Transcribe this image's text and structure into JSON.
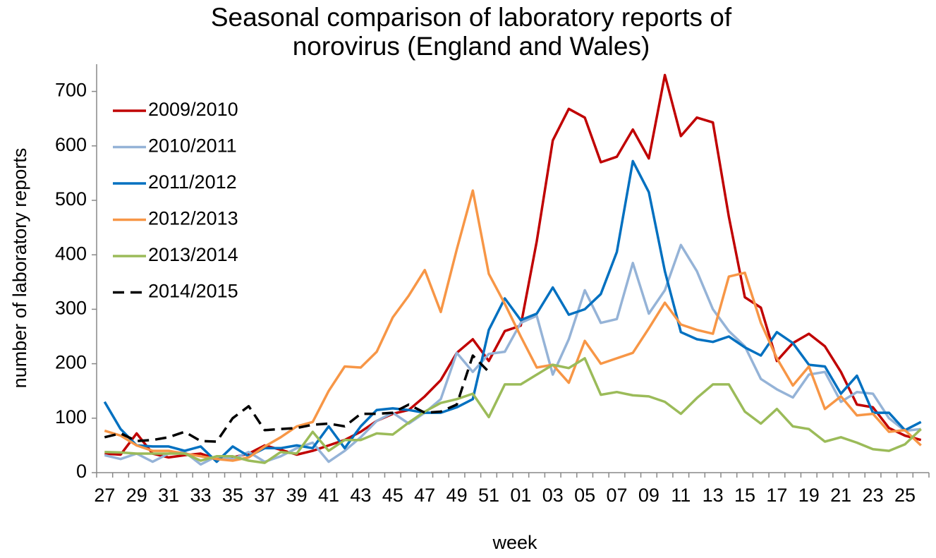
{
  "chart_data": {
    "type": "line",
    "title": "Seasonal comparison of laboratory reports of norovirus (England and Wales)",
    "x_label": "week",
    "y_label": "number of laboratory reports",
    "categories": [
      "27",
      null,
      "29",
      null,
      "31",
      null,
      "33",
      null,
      "35",
      null,
      "37",
      null,
      "39",
      null,
      "41",
      null,
      "43",
      null,
      "45",
      null,
      "47",
      null,
      "49",
      null,
      "51",
      null,
      "01",
      null,
      "03",
      null,
      "05",
      null,
      "07",
      null,
      "09",
      null,
      "11",
      null,
      "13",
      null,
      "15",
      null,
      "17",
      null,
      "19",
      null,
      "21",
      null,
      "23",
      null,
      "25",
      null
    ],
    "ylim": [
      0,
      750
    ],
    "yticks": [
      0,
      100,
      200,
      300,
      400,
      500,
      600,
      700
    ],
    "grid": false,
    "legend": "top-left",
    "series": [
      {
        "name": "2009/2010",
        "color": "#c00000",
        "values": [
          35,
          33,
          72,
          35,
          28,
          32,
          35,
          25,
          28,
          35,
          50,
          42,
          33,
          40,
          50,
          60,
          75,
          95,
          108,
          115,
          140,
          170,
          220,
          245,
          205,
          260,
          270,
          425,
          610,
          668,
          652,
          570,
          580,
          630,
          577,
          730,
          618,
          652,
          643,
          470,
          322,
          303,
          205,
          238,
          255,
          232,
          185,
          125,
          120,
          82,
          68,
          60
        ]
      },
      {
        "name": "2010/2011",
        "color": "#95b3d7",
        "values": [
          32,
          25,
          35,
          20,
          35,
          38,
          15,
          30,
          25,
          38,
          20,
          30,
          45,
          55,
          20,
          40,
          65,
          95,
          110,
          90,
          110,
          135,
          220,
          185,
          218,
          222,
          275,
          288,
          180,
          245,
          335,
          275,
          282,
          385,
          292,
          335,
          418,
          370,
          300,
          260,
          232,
          172,
          153,
          138,
          180,
          185,
          130,
          148,
          145,
          100,
          77,
          80
        ]
      },
      {
        "name": "2011/2012",
        "color": "#0070c0",
        "values": [
          130,
          80,
          50,
          48,
          48,
          40,
          48,
          20,
          48,
          30,
          45,
          45,
          50,
          45,
          85,
          45,
          85,
          115,
          118,
          115,
          110,
          110,
          120,
          135,
          262,
          320,
          280,
          292,
          340,
          290,
          300,
          328,
          405,
          572,
          515,
          370,
          258,
          245,
          240,
          250,
          230,
          215,
          258,
          238,
          198,
          195,
          145,
          178,
          110,
          110,
          78,
          93
        ]
      },
      {
        "name": "2012/2013",
        "color": "#f79646",
        "values": [
          77,
          68,
          50,
          40,
          40,
          35,
          30,
          25,
          22,
          28,
          48,
          65,
          85,
          93,
          150,
          195,
          193,
          222,
          285,
          325,
          372,
          295,
          410,
          518,
          365,
          310,
          250,
          193,
          198,
          165,
          242,
          200,
          210,
          220,
          265,
          312,
          272,
          262,
          255,
          360,
          367,
          275,
          210,
          160,
          195,
          117,
          140,
          105,
          108,
          75,
          78,
          50
        ]
      },
      {
        "name": "2013/2014",
        "color": "#9bbb59",
        "values": [
          38,
          37,
          35,
          35,
          35,
          35,
          22,
          30,
          30,
          22,
          18,
          38,
          35,
          75,
          40,
          60,
          60,
          72,
          70,
          92,
          112,
          128,
          135,
          145,
          102,
          162,
          162,
          180,
          198,
          192,
          210,
          143,
          148,
          142,
          140,
          130,
          108,
          137,
          162,
          162,
          112,
          90,
          117,
          85,
          80,
          57,
          65,
          55,
          43,
          40,
          52,
          80
        ]
      },
      {
        "name": "2014/2015",
        "color": "#000000",
        "dashed": true,
        "values": [
          65,
          72,
          58,
          60,
          65,
          75,
          58,
          57,
          100,
          122,
          78,
          80,
          82,
          88,
          90,
          85,
          108,
          108,
          110,
          125,
          110,
          112,
          125,
          215,
          185,
          null,
          null,
          null,
          null,
          null,
          null,
          null,
          null,
          null,
          null,
          null,
          null,
          null,
          null,
          null,
          null,
          null,
          null,
          null,
          null,
          null,
          null,
          null,
          null,
          null,
          null,
          null
        ]
      }
    ]
  }
}
